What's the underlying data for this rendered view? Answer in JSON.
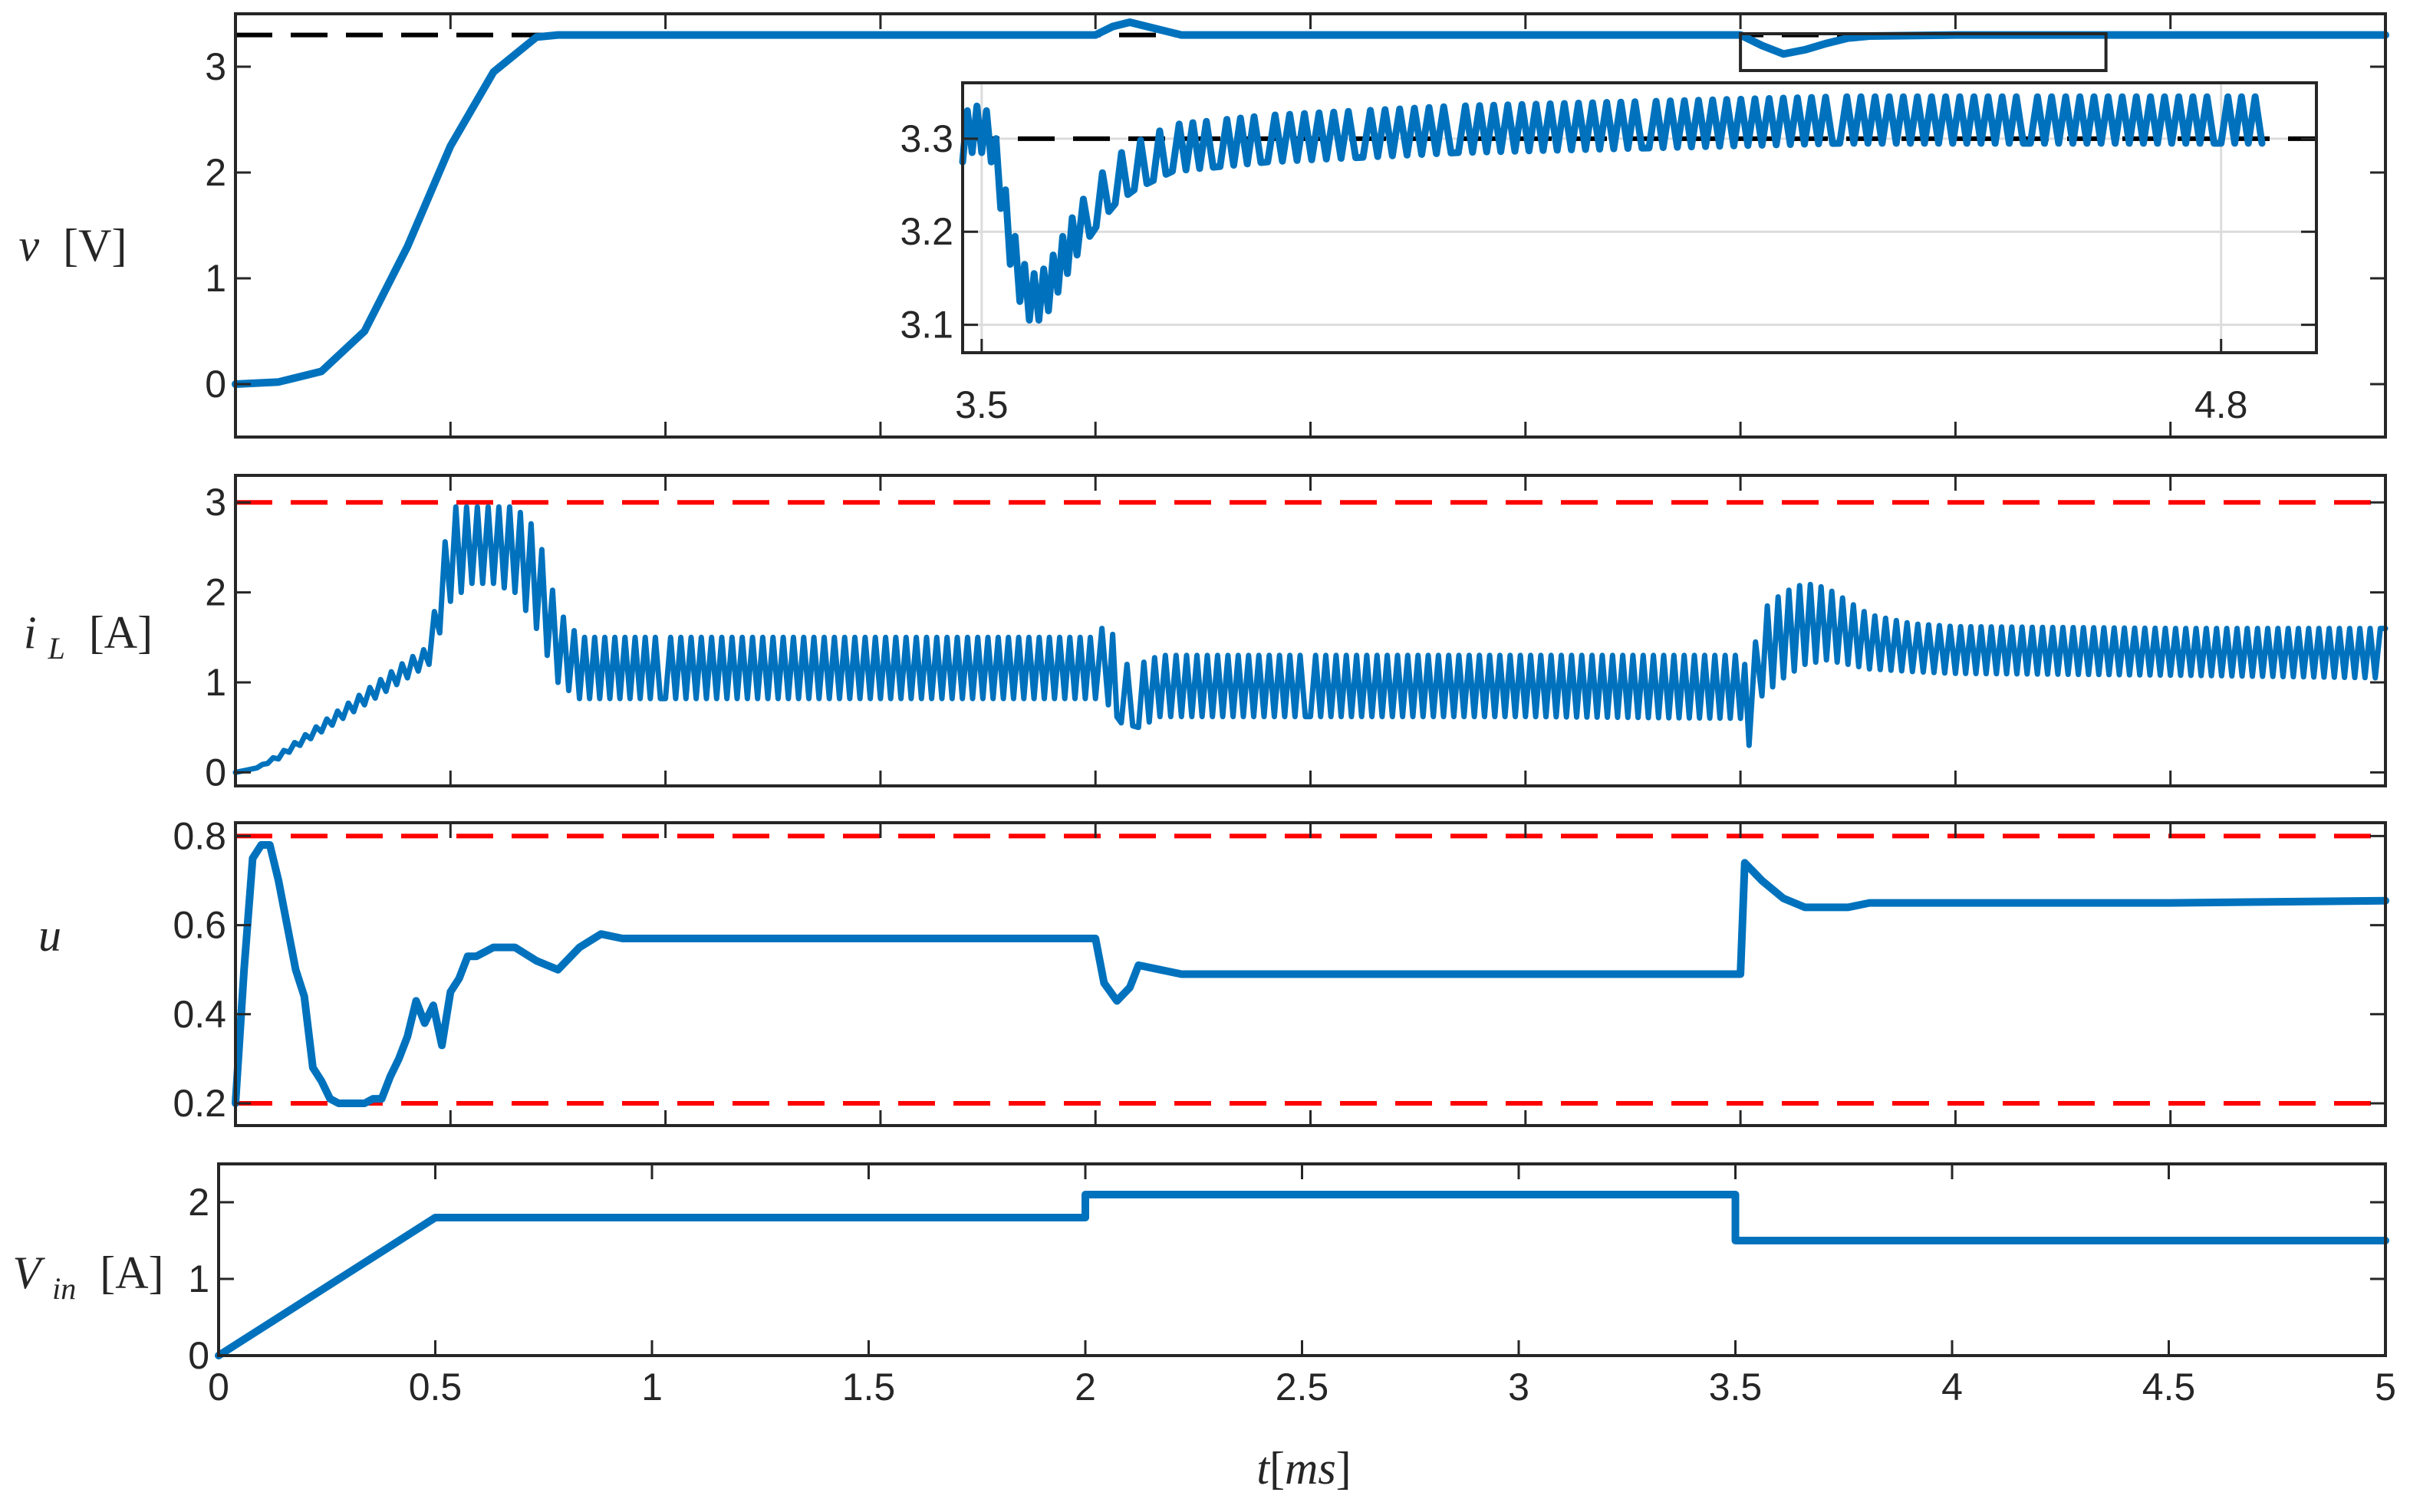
{
  "chart_data": [
    {
      "id": "voltage",
      "type": "line",
      "ylabel": {
        "symbol": "v",
        "unit": "[V]"
      },
      "xlim": [
        0,
        5
      ],
      "ylim": [
        -0.5,
        3.5
      ],
      "yticks": [
        0,
        1,
        2,
        3
      ],
      "xtick_labels_visible": false,
      "reference": {
        "value": 3.3,
        "color": "#000000"
      },
      "series": [
        {
          "color": "#0072bd",
          "x": [
            0,
            0.1,
            0.2,
            0.3,
            0.4,
            0.5,
            0.6,
            0.7,
            0.75,
            0.8,
            1.0,
            1.5,
            2.0,
            2.04,
            2.08,
            2.12,
            2.2,
            2.5,
            3.0,
            3.5,
            3.55,
            3.6,
            3.65,
            3.7,
            3.75,
            3.8,
            4.0,
            4.5,
            5.0
          ],
          "y": [
            0,
            0.02,
            0.12,
            0.5,
            1.3,
            2.25,
            2.95,
            3.28,
            3.3,
            3.3,
            3.3,
            3.3,
            3.3,
            3.38,
            3.42,
            3.38,
            3.3,
            3.3,
            3.3,
            3.3,
            3.2,
            3.12,
            3.16,
            3.22,
            3.27,
            3.29,
            3.3,
            3.3,
            3.3
          ]
        }
      ],
      "annotation": "zoom box 3.5–4.35 ms"
    },
    {
      "id": "voltage-inset",
      "type": "line",
      "xlim": [
        3.48,
        4.9
      ],
      "ylim": [
        3.07,
        3.36
      ],
      "xticks": [
        3.5,
        4.8
      ],
      "yticks": [
        3.1,
        3.2,
        3.3
      ],
      "reference": {
        "value": 3.3,
        "color": "#000000"
      },
      "series": [
        {
          "color": "#0072bd",
          "ripple": 0.05,
          "x": [
            3.48,
            3.49,
            3.5,
            3.51,
            3.52,
            3.53,
            3.54,
            3.55,
            3.56,
            3.57,
            3.58,
            3.59,
            3.6,
            3.62,
            3.64,
            3.66,
            3.68,
            3.7,
            3.75,
            3.8,
            3.9,
            4.0,
            4.2,
            4.4,
            4.6,
            4.8,
            4.85
          ],
          "y": [
            3.3,
            3.31,
            3.31,
            3.3,
            3.25,
            3.19,
            3.15,
            3.13,
            3.13,
            3.14,
            3.16,
            3.18,
            3.2,
            3.23,
            3.255,
            3.27,
            3.28,
            3.29,
            3.295,
            3.3,
            3.305,
            3.31,
            3.315,
            3.32,
            3.32,
            3.32,
            3.32
          ]
        }
      ]
    },
    {
      "id": "inductor-current",
      "type": "line",
      "ylabel": {
        "symbol": "i",
        "sub": "L",
        "unit": "[A]"
      },
      "xlim": [
        0,
        5
      ],
      "ylim": [
        -0.15,
        3.3
      ],
      "yticks": [
        0,
        1,
        2,
        3
      ],
      "xtick_labels_visible": false,
      "reference": {
        "value": 3,
        "color": "#ff0000"
      },
      "series": [
        {
          "color": "#0072bd",
          "envelope": true,
          "x": [
            0,
            0.05,
            0.1,
            0.2,
            0.3,
            0.4,
            0.45,
            0.5,
            0.55,
            0.6,
            0.65,
            0.7,
            0.75,
            0.8,
            1.0,
            1.5,
            2.0,
            2.03,
            2.06,
            2.1,
            2.15,
            2.2,
            2.5,
            3.0,
            3.5,
            3.52,
            3.55,
            3.6,
            3.65,
            3.7,
            3.75,
            3.8,
            3.9,
            4.0,
            4.5,
            5.0
          ],
          "low": [
            0,
            0.05,
            0.15,
            0.45,
            0.75,
            1.05,
            1.2,
            1.9,
            2.1,
            2.1,
            2.0,
            1.6,
            1.0,
            0.82,
            0.82,
            0.82,
            0.82,
            0.75,
            0.55,
            0.5,
            0.62,
            0.62,
            0.62,
            0.62,
            0.6,
            0.3,
            0.85,
            1.05,
            1.2,
            1.25,
            1.2,
            1.15,
            1.12,
            1.1,
            1.08,
            1.05
          ],
          "high": [
            0,
            0.05,
            0.2,
            0.55,
            0.9,
            1.25,
            1.4,
            2.95,
            2.95,
            2.95,
            2.95,
            2.7,
            1.8,
            1.5,
            1.5,
            1.5,
            1.5,
            1.7,
            1.2,
            1.2,
            1.3,
            1.3,
            1.3,
            1.3,
            1.3,
            1.1,
            1.8,
            2.0,
            2.1,
            2.05,
            1.9,
            1.75,
            1.65,
            1.62,
            1.6,
            1.6
          ]
        }
      ]
    },
    {
      "id": "duty-cycle",
      "type": "line",
      "ylabel": {
        "symbol": "u",
        "unit": ""
      },
      "xlim": [
        0,
        5
      ],
      "ylim": [
        0.15,
        0.83
      ],
      "yticks": [
        0.2,
        0.4,
        0.6,
        0.8
      ],
      "xtick_labels_visible": false,
      "references": [
        {
          "value": 0.8,
          "color": "#ff0000"
        },
        {
          "value": 0.2,
          "color": "#ff0000"
        }
      ],
      "series": [
        {
          "color": "#0072bd",
          "x": [
            0,
            0.02,
            0.04,
            0.06,
            0.08,
            0.1,
            0.12,
            0.14,
            0.16,
            0.18,
            0.2,
            0.22,
            0.24,
            0.26,
            0.28,
            0.3,
            0.32,
            0.34,
            0.36,
            0.38,
            0.4,
            0.42,
            0.44,
            0.46,
            0.48,
            0.5,
            0.52,
            0.54,
            0.56,
            0.6,
            0.65,
            0.7,
            0.75,
            0.8,
            0.85,
            0.9,
            1.0,
            1.5,
            2.0,
            2.02,
            2.05,
            2.08,
            2.1,
            2.15,
            2.2,
            2.5,
            3.0,
            3.5,
            3.51,
            3.55,
            3.6,
            3.65,
            3.7,
            3.75,
            3.8,
            3.9,
            4.0,
            4.5,
            5.0
          ],
          "y": [
            0.2,
            0.5,
            0.75,
            0.78,
            0.78,
            0.7,
            0.6,
            0.5,
            0.44,
            0.28,
            0.25,
            0.21,
            0.2,
            0.2,
            0.2,
            0.2,
            0.21,
            0.21,
            0.26,
            0.3,
            0.35,
            0.43,
            0.38,
            0.42,
            0.33,
            0.45,
            0.48,
            0.53,
            0.53,
            0.55,
            0.55,
            0.52,
            0.5,
            0.55,
            0.58,
            0.57,
            0.57,
            0.57,
            0.57,
            0.47,
            0.43,
            0.46,
            0.51,
            0.5,
            0.49,
            0.49,
            0.49,
            0.49,
            0.74,
            0.7,
            0.66,
            0.64,
            0.64,
            0.64,
            0.65,
            0.65,
            0.65,
            0.65,
            0.655
          ]
        }
      ]
    },
    {
      "id": "input-voltage",
      "type": "line",
      "ylabel": {
        "symbol": "V",
        "sub": "in",
        "unit": "[A]"
      },
      "xlabel": {
        "symbol": "t",
        "unit": "ms"
      },
      "xlim": [
        0,
        5
      ],
      "ylim": [
        0,
        2.5
      ],
      "yticks": [
        0,
        1,
        2
      ],
      "xticks": [
        0,
        0.5,
        1,
        1.5,
        2,
        2.5,
        3,
        3.5,
        4,
        4.5,
        5
      ],
      "xtick_labels_visible": true,
      "series": [
        {
          "color": "#0072bd",
          "x": [
            0,
            0.5,
            2.0,
            2.0,
            3.5,
            3.5,
            5.0
          ],
          "y": [
            0,
            1.8,
            1.8,
            2.1,
            2.1,
            1.5,
            1.5
          ]
        }
      ]
    }
  ]
}
